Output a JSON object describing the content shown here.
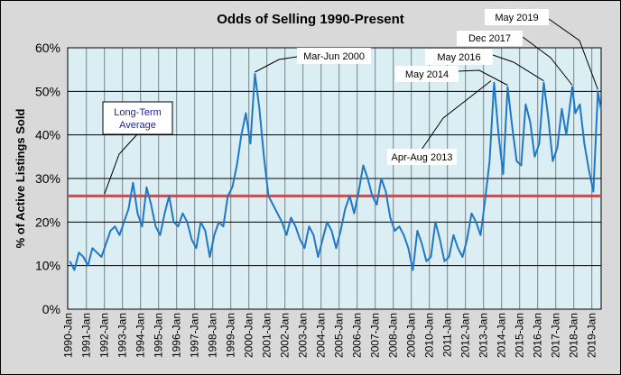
{
  "chart_data": {
    "type": "line",
    "title": "Odds of Selling 1990-Present",
    "ylabel": "% of Active Listings Sold",
    "xlabel": "",
    "ylim": [
      0,
      60
    ],
    "yticks": [
      "0%",
      "10%",
      "20%",
      "30%",
      "40%",
      "50%",
      "60%"
    ],
    "xticks": [
      "1990-Jan",
      "1991-Jan",
      "1992-Jan",
      "1993-Jan",
      "1994-Jan",
      "1995-Jan",
      "1996-Jan",
      "1997-Jan",
      "1998-Jan",
      "1999-Jan",
      "2000-Jan",
      "2001-Jan",
      "2002-Jan",
      "2003-Jan",
      "2004-Jan",
      "2005-Jan",
      "2006-Jan",
      "2007-Jan",
      "2008-Jan",
      "2009-Jan",
      "2010-Jan",
      "2011-Jan",
      "2012-Jan",
      "2013-Jan",
      "2014-Jan",
      "2015-Jan",
      "2016-Jan",
      "2017-Jan",
      "2018-Jan",
      "2019-Jan"
    ],
    "grid": true,
    "legend": "none",
    "colors": {
      "series": "#1f78c8",
      "average": "#c0504d",
      "plot_bg": "#daeef3",
      "figure_bg": "#d9d9d9"
    },
    "long_term_average": 26,
    "series": [
      {
        "dates": [
          "1990-02",
          "1990-05",
          "1990-08",
          "1990-11",
          "1991-02",
          "1991-05",
          "1991-08",
          "1991-11",
          "1992-02",
          "1992-05",
          "1992-08",
          "1992-11",
          "1993-02",
          "1993-05",
          "1993-08",
          "1993-11",
          "1994-02",
          "1994-05",
          "1994-08",
          "1994-11",
          "1995-02",
          "1995-05",
          "1995-08",
          "1995-11",
          "1996-02",
          "1996-05",
          "1996-08",
          "1996-11",
          "1997-02",
          "1997-05",
          "1997-08",
          "1997-11",
          "1998-02",
          "1998-05",
          "1998-08",
          "1998-11",
          "1999-02",
          "1999-05",
          "1999-08",
          "1999-11",
          "2000-02",
          "2000-05",
          "2000-08",
          "2000-11",
          "2001-02",
          "2001-05",
          "2001-08",
          "2001-11",
          "2002-02",
          "2002-05",
          "2002-08",
          "2002-11",
          "2003-02",
          "2003-05",
          "2003-08",
          "2003-11",
          "2004-02",
          "2004-05",
          "2004-08",
          "2004-11",
          "2005-02",
          "2005-05",
          "2005-08",
          "2005-11",
          "2006-02",
          "2006-05",
          "2006-08",
          "2006-11",
          "2007-02",
          "2007-05",
          "2007-08",
          "2007-11",
          "2008-02",
          "2008-05",
          "2008-08",
          "2008-11",
          "2009-02",
          "2009-05",
          "2009-08",
          "2009-11",
          "2010-02",
          "2010-05",
          "2010-08",
          "2010-11",
          "2011-02",
          "2011-05",
          "2011-08",
          "2011-11",
          "2012-02",
          "2012-05",
          "2012-08",
          "2012-11",
          "2013-02",
          "2013-05",
          "2013-08",
          "2013-11",
          "2014-02",
          "2014-05",
          "2014-08",
          "2014-11",
          "2015-02",
          "2015-05",
          "2015-08",
          "2015-11",
          "2016-02",
          "2016-05",
          "2016-08",
          "2016-11",
          "2017-02",
          "2017-05",
          "2017-08",
          "2017-12",
          "2018-02",
          "2018-05",
          "2018-08",
          "2018-11",
          "2019-02",
          "2019-05",
          "2019-07"
        ],
        "values": [
          11,
          9,
          13,
          12,
          10,
          14,
          13,
          12,
          15,
          18,
          19,
          17,
          20,
          23,
          29,
          22,
          19,
          28,
          24,
          19,
          17,
          22,
          26,
          20,
          19,
          22,
          20,
          16,
          14,
          20,
          18,
          12,
          17,
          20,
          19,
          26,
          28,
          33,
          40,
          45,
          38,
          54,
          46,
          35,
          26,
          24,
          22,
          20,
          17,
          21,
          19,
          16,
          14,
          19,
          17,
          12,
          16,
          20,
          18,
          14,
          18,
          23,
          26,
          22,
          27,
          33,
          30,
          26,
          24,
          30,
          27,
          21,
          18,
          19,
          17,
          14,
          9,
          18,
          15,
          11,
          12,
          20,
          16,
          11,
          12,
          17,
          14,
          12,
          16,
          22,
          20,
          17,
          25,
          34,
          52,
          40,
          31,
          51,
          42,
          34,
          33,
          47,
          43,
          35,
          38,
          52,
          44,
          34,
          37,
          46,
          40,
          51,
          45,
          47,
          38,
          32,
          27,
          50,
          46
        ]
      }
    ],
    "annotations": [
      {
        "text": "Long-Term Average",
        "date": "1992-01",
        "value": 26
      },
      {
        "text": "Mar-Jun 2000",
        "date": "2000-05",
        "value": 54
      },
      {
        "text": "Apr-Aug 2013",
        "date": "2013-06",
        "value": 52
      },
      {
        "text": "May 2014",
        "date": "2014-05",
        "value": 51
      },
      {
        "text": "May 2016",
        "date": "2016-05",
        "value": 52
      },
      {
        "text": "Dec 2017",
        "date": "2017-12",
        "value": 51
      },
      {
        "text": "May 2019",
        "date": "2019-05",
        "value": 50
      }
    ]
  }
}
